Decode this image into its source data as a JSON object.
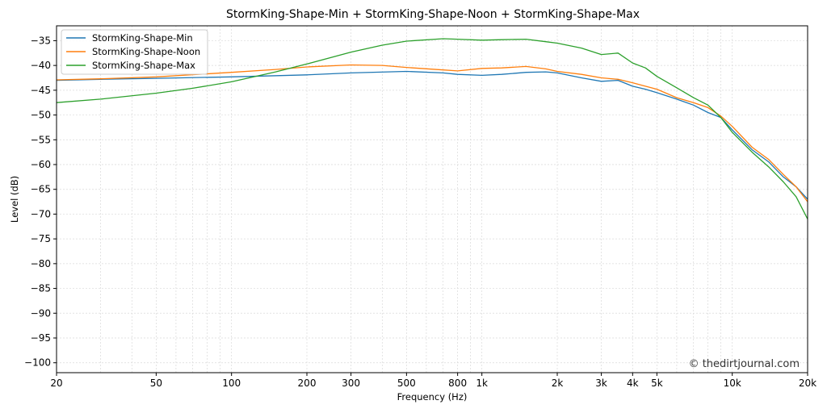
{
  "chart_data": {
    "type": "line",
    "title": "StormKing-Shape-Min + StormKing-Shape-Noon + StormKing-Shape-Max",
    "xlabel": "Frequency (Hz)",
    "ylabel": "Level (dB)",
    "xscale": "log",
    "xlim": [
      20,
      20000
    ],
    "ylim": [
      -102,
      -32
    ],
    "x_ticks": [
      20,
      50,
      100,
      200,
      300,
      500,
      800,
      1000,
      2000,
      3000,
      4000,
      5000,
      10000,
      20000
    ],
    "x_tick_labels": [
      "20",
      "50",
      "100",
      "200",
      "300",
      "500",
      "800",
      "1k",
      "2k",
      "3k",
      "4k",
      "5k",
      "10k",
      "20k"
    ],
    "y_ticks": [
      -35,
      -40,
      -45,
      -50,
      -55,
      -60,
      -65,
      -70,
      -75,
      -80,
      -85,
      -90,
      -95,
      -100
    ],
    "y_tick_labels": [
      "−35",
      "−40",
      "−45",
      "−50",
      "−55",
      "−60",
      "−65",
      "−70",
      "−75",
      "−80",
      "−85",
      "−90",
      "−95",
      "−100"
    ],
    "grid": true,
    "legend_position": "top-left",
    "watermark": "© thedirtjournal.com",
    "series": [
      {
        "name": "StormKing-Shape-Min",
        "color": "#1f77b4",
        "x": [
          20,
          30,
          50,
          100,
          200,
          300,
          500,
          700,
          800,
          1000,
          1200,
          1500,
          1800,
          2000,
          2500,
          3000,
          3500,
          4000,
          4500,
          5000,
          6000,
          7000,
          8000,
          9000,
          10000,
          12000,
          14000,
          16000,
          18000,
          20000
        ],
        "y": [
          -43,
          -42.8,
          -42.6,
          -42.3,
          -41.9,
          -41.5,
          -41.2,
          -41.5,
          -41.8,
          -42.0,
          -41.8,
          -41.4,
          -41.3,
          -41.5,
          -42.5,
          -43.2,
          -43.0,
          -44.2,
          -44.8,
          -45.5,
          -46.8,
          -48.0,
          -49.5,
          -50.5,
          -53.0,
          -57.0,
          -59.5,
          -62.5,
          -64.5,
          -67.0
        ]
      },
      {
        "name": "StormKing-Shape-Noon",
        "color": "#ff7f0e",
        "x": [
          20,
          30,
          50,
          100,
          150,
          200,
          300,
          400,
          500,
          700,
          800,
          1000,
          1200,
          1500,
          1800,
          2000,
          2500,
          3000,
          3500,
          4000,
          4500,
          5000,
          6000,
          7000,
          8000,
          9000,
          10000,
          12000,
          14000,
          16000,
          18000,
          20000
        ],
        "y": [
          -42.9,
          -42.7,
          -42.3,
          -41.4,
          -40.8,
          -40.3,
          -39.9,
          -40.0,
          -40.4,
          -40.9,
          -41.1,
          -40.6,
          -40.5,
          -40.2,
          -40.7,
          -41.2,
          -41.8,
          -42.5,
          -42.8,
          -43.5,
          -44.2,
          -44.8,
          -46.5,
          -47.5,
          -48.5,
          -50.2,
          -52.3,
          -56.5,
          -59.0,
          -62.0,
          -64.5,
          -67.5
        ]
      },
      {
        "name": "StormKing-Shape-Max",
        "color": "#2ca02c",
        "x": [
          20,
          30,
          50,
          70,
          100,
          150,
          200,
          300,
          400,
          500,
          700,
          800,
          1000,
          1200,
          1500,
          1800,
          2000,
          2500,
          3000,
          3500,
          4000,
          4500,
          5000,
          6000,
          7000,
          8000,
          9000,
          10000,
          12000,
          14000,
          16000,
          18000,
          20000
        ],
        "y": [
          -47.5,
          -46.8,
          -45.6,
          -44.6,
          -43.3,
          -41.3,
          -39.7,
          -37.3,
          -35.9,
          -35.1,
          -34.6,
          -34.7,
          -34.9,
          -34.8,
          -34.7,
          -35.2,
          -35.5,
          -36.5,
          -37.8,
          -37.5,
          -39.5,
          -40.5,
          -42.2,
          -44.5,
          -46.5,
          -48.0,
          -50.5,
          -53.5,
          -57.5,
          -60.5,
          -63.5,
          -66.5,
          -71.0
        ]
      }
    ]
  }
}
